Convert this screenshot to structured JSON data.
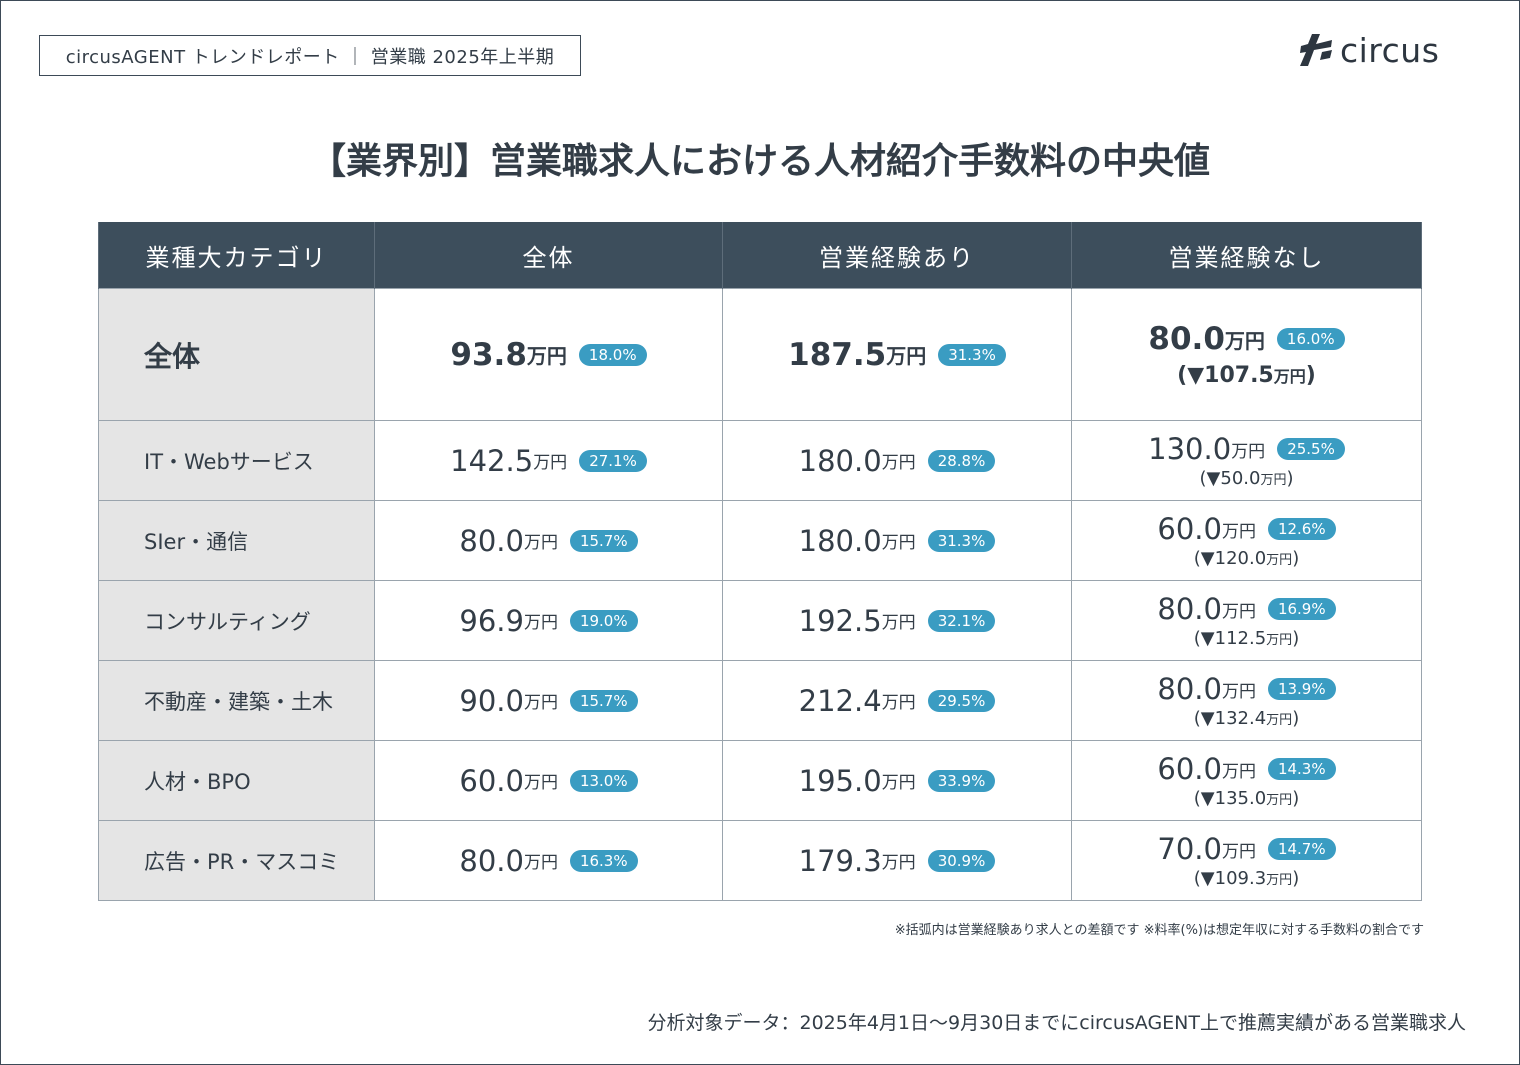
{
  "header": {
    "report_tag": "circusAGENT トレンドレポート ｜ 営業職 2025年上半期",
    "logo_text": "circus",
    "logo_icon": "circus-logo-mark-icon"
  },
  "title": "【業界別】営業職求人における人材紹介手数料の中央値",
  "table": {
    "headers": [
      "業種大カテゴリ",
      "全体",
      "営業経験あり",
      "営業経験なし"
    ],
    "unit": "万円",
    "rows": [
      {
        "category": "全体",
        "all": {
          "value": "93.8",
          "rate": "18.0%"
        },
        "with_exp": {
          "value": "187.5",
          "rate": "31.3%"
        },
        "without_exp": {
          "value": "80.0",
          "rate": "16.0%",
          "diff": "(▼107.5",
          "diff_close": ")"
        }
      },
      {
        "category": "IT・Webサービス",
        "all": {
          "value": "142.5",
          "rate": "27.1%"
        },
        "with_exp": {
          "value": "180.0",
          "rate": "28.8%"
        },
        "without_exp": {
          "value": "130.0",
          "rate": "25.5%",
          "diff": "(▼50.0",
          "diff_close": ")"
        }
      },
      {
        "category": "SIer・通信",
        "all": {
          "value": "80.0",
          "rate": "15.7%"
        },
        "with_exp": {
          "value": "180.0",
          "rate": "31.3%"
        },
        "without_exp": {
          "value": "60.0",
          "rate": "12.6%",
          "diff": "(▼120.0",
          "diff_close": ")"
        }
      },
      {
        "category": "コンサルティング",
        "all": {
          "value": "96.9",
          "rate": "19.0%"
        },
        "with_exp": {
          "value": "192.5",
          "rate": "32.1%"
        },
        "without_exp": {
          "value": "80.0",
          "rate": "16.9%",
          "diff": "(▼112.5",
          "diff_close": ")"
        }
      },
      {
        "category": "不動産・建築・土木",
        "all": {
          "value": "90.0",
          "rate": "15.7%"
        },
        "with_exp": {
          "value": "212.4",
          "rate": "29.5%"
        },
        "without_exp": {
          "value": "80.0",
          "rate": "13.9%",
          "diff": "(▼132.4",
          "diff_close": ")"
        }
      },
      {
        "category": "人材・BPO",
        "all": {
          "value": "60.0",
          "rate": "13.0%"
        },
        "with_exp": {
          "value": "195.0",
          "rate": "33.9%"
        },
        "without_exp": {
          "value": "60.0",
          "rate": "14.3%",
          "diff": "(▼135.0",
          "diff_close": ")"
        }
      },
      {
        "category": "広告・PR・マスコミ",
        "all": {
          "value": "80.0",
          "rate": "16.3%"
        },
        "with_exp": {
          "value": "179.3",
          "rate": "30.9%"
        },
        "without_exp": {
          "value": "70.0",
          "rate": "14.7%",
          "diff": "(▼109.3",
          "diff_close": ")"
        }
      }
    ]
  },
  "note": "※括弧内は営業経験あり求人との差額です ※料率(%)は想定年収に対する手数料の割合です",
  "source": "分析対象データ：2025年4月1日～9月30日までにcircusAGENT上で推薦実績がある営業職求人",
  "colors": {
    "header_bg": "#3d4e5c",
    "badge": "#3a9cc2",
    "category_bg": "#e5e5e5",
    "text": "#333d47"
  }
}
